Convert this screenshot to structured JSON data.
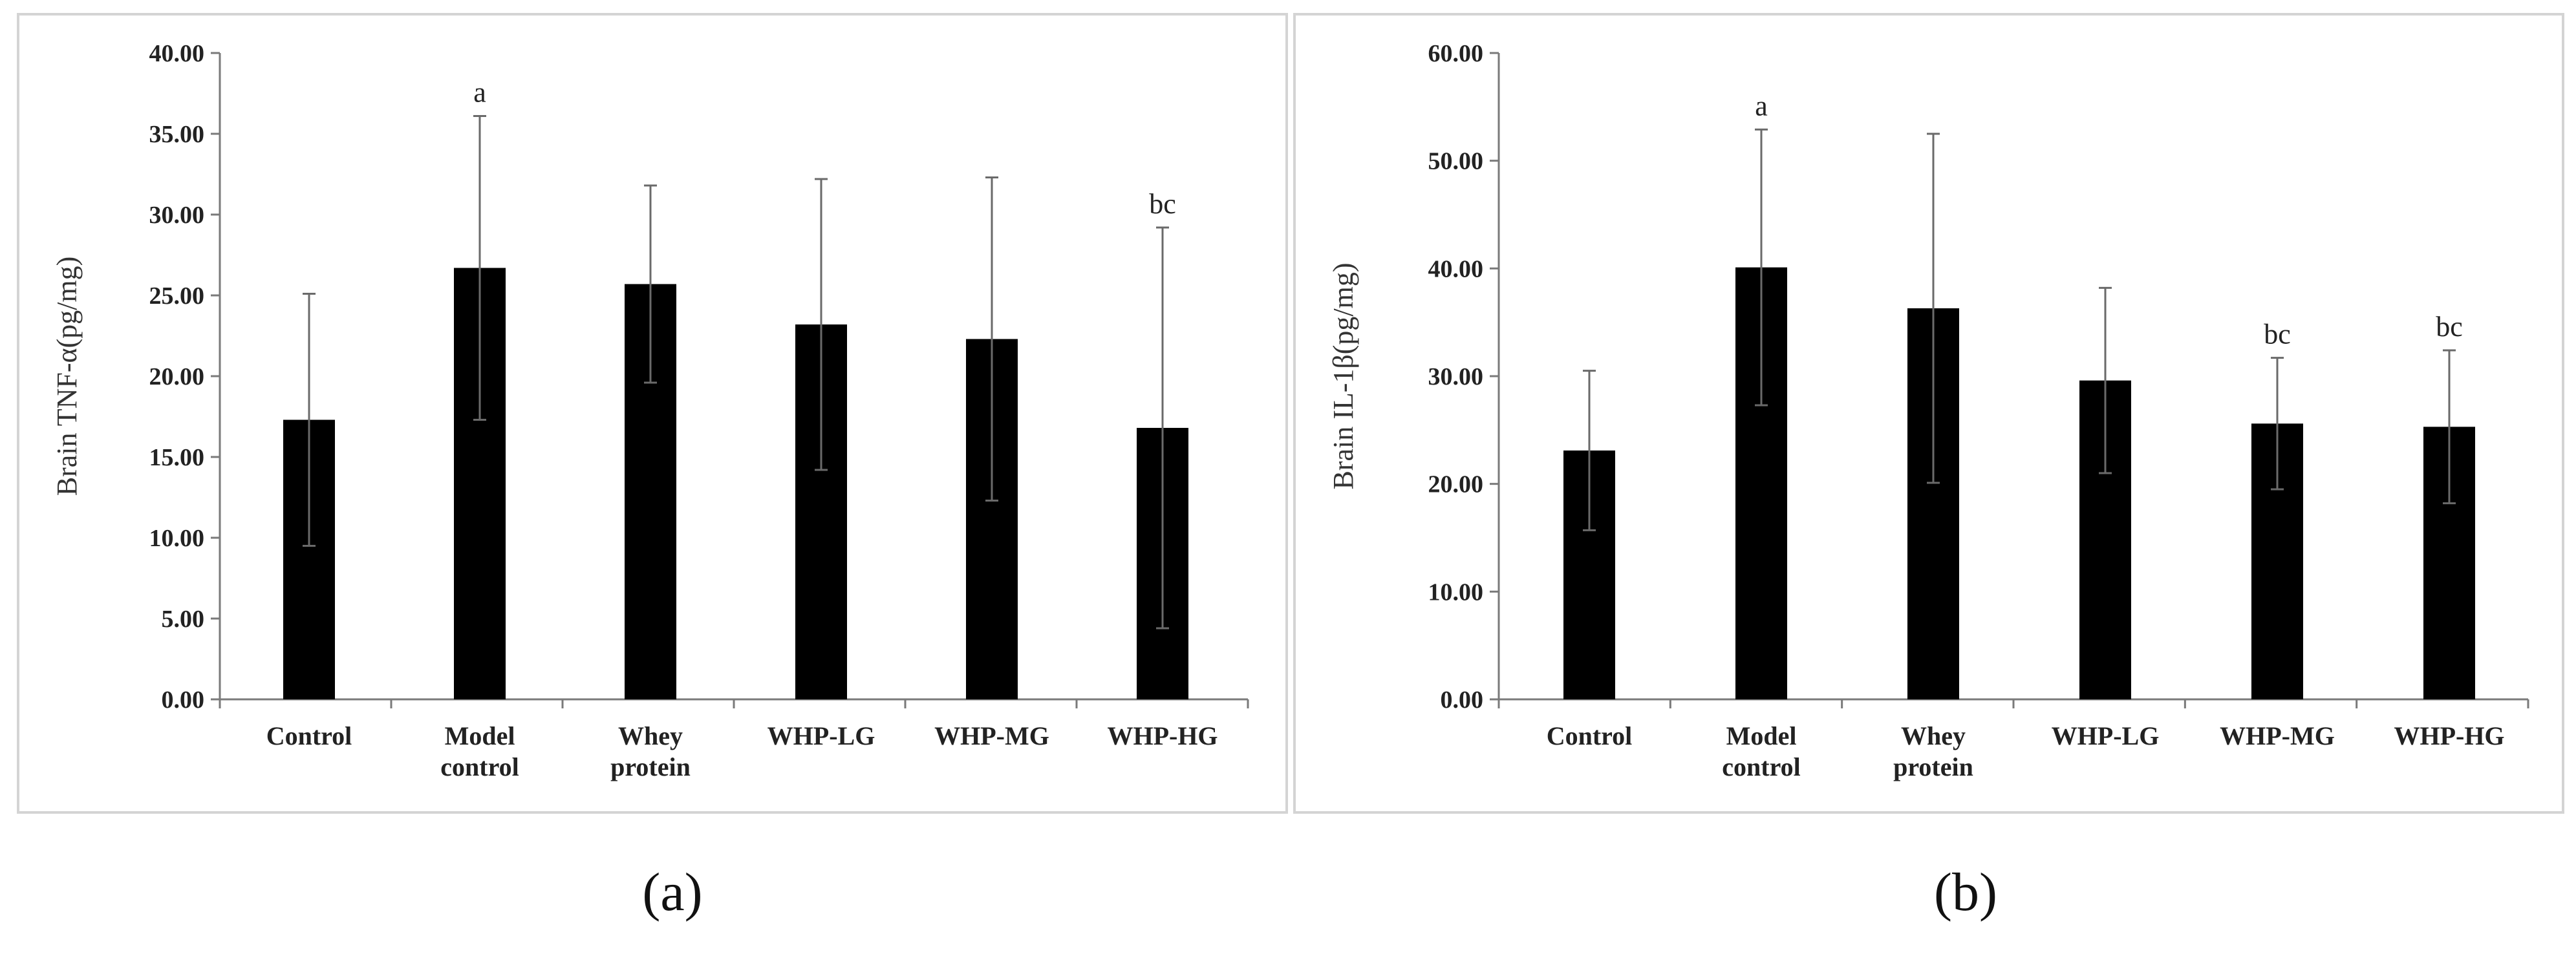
{
  "chart_data": [
    {
      "type": "bar",
      "panel_label": "(a)",
      "categories": [
        [
          "Control"
        ],
        [
          "Model",
          "control"
        ],
        [
          "Whey",
          "protein"
        ],
        [
          "WHP-LG"
        ],
        [
          "WHP-MG"
        ],
        [
          "WHP-HG"
        ]
      ],
      "values": [
        17.3,
        26.7,
        25.7,
        23.2,
        22.3,
        16.8
      ],
      "error_bars": [
        7.8,
        9.4,
        6.1,
        9.0,
        10.0,
        12.4
      ],
      "annotations": [
        "",
        "a",
        "",
        "",
        "",
        "bc"
      ],
      "ylabel": "Brain TNF-α(pg/mg)",
      "xlabel": "",
      "ylim": [
        0,
        40
      ],
      "yticks": [
        "0.00",
        "5.00",
        "10.00",
        "15.00",
        "20.00",
        "25.00",
        "30.00",
        "35.00",
        "40.00"
      ],
      "bar_color": "#000000"
    },
    {
      "type": "bar",
      "panel_label": "(b)",
      "categories": [
        [
          "Control"
        ],
        [
          "Model",
          "control"
        ],
        [
          "Whey",
          "protein"
        ],
        [
          "WHP-LG"
        ],
        [
          "WHP-MG"
        ],
        [
          "WHP-HG"
        ]
      ],
      "values": [
        23.1,
        40.1,
        36.3,
        29.6,
        25.6,
        25.3
      ],
      "error_bars": [
        7.4,
        12.8,
        16.2,
        8.6,
        6.1,
        7.1
      ],
      "annotations": [
        "",
        "a",
        "",
        "",
        "bc",
        "bc"
      ],
      "ylabel": "Brain IL-1β(pg/mg)",
      "xlabel": "",
      "ylim": [
        0,
        60
      ],
      "yticks": [
        "0.00",
        "10.00",
        "20.00",
        "30.00",
        "40.00",
        "50.00",
        "60.00"
      ],
      "bar_color": "#000000"
    }
  ]
}
